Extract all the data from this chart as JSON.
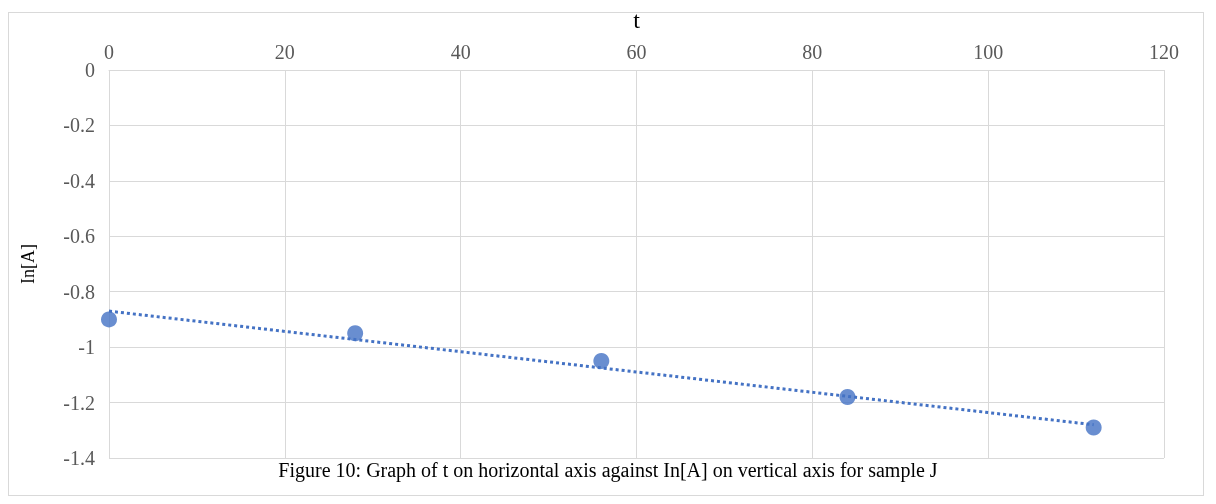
{
  "chart_data": {
    "type": "scatter",
    "xlabel": "t",
    "ylabel": "In[A]",
    "x": [
      0,
      28,
      56,
      84,
      112
    ],
    "series": [
      {
        "color": "#4472c4",
        "marker": "circle",
        "values": [
          -0.9,
          -0.95,
          -1.05,
          -1.18,
          -1.29
        ]
      },
      {
        "type": "line",
        "color": "#4472c4",
        "line_style": "dotted",
        "marker": "none",
        "x": [
          0,
          112
        ],
        "values": [
          -0.87,
          -1.28
        ]
      }
    ],
    "xlim": [
      0,
      120
    ],
    "xticks": [
      0,
      20,
      40,
      60,
      80,
      100,
      120
    ],
    "ylim": [
      -1.4,
      0
    ],
    "yticks": [
      0,
      -0.2,
      -0.4,
      -0.6,
      -0.8,
      -1,
      -1.2,
      -1.4
    ],
    "grid": true,
    "annotations": [
      "Figure 10: Graph of t on horizontal axis against In[A] on vertical axis for sample J"
    ]
  }
}
